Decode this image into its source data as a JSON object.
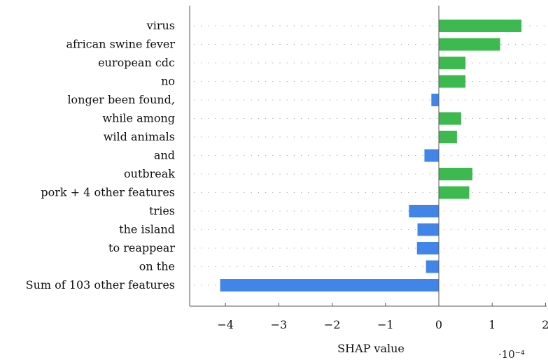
{
  "chart_data": {
    "type": "bar",
    "orientation": "horizontal",
    "categories": [
      "virus",
      "african swine fever",
      "european cdc",
      "no",
      "longer been found,",
      "while among",
      "wild animals",
      "and",
      "outbreak",
      "pork + 4 other features",
      "tries",
      "the island",
      "to reappear",
      "on the",
      "Sum of 103 other features"
    ],
    "values": [
      1.55,
      1.15,
      0.5,
      0.5,
      -0.14,
      0.42,
      0.34,
      -0.27,
      0.63,
      0.57,
      -0.56,
      -0.4,
      -0.41,
      -0.24,
      -4.1
    ],
    "value_scale": "×10^-4",
    "xlabel": "SHAP value",
    "x_multiplier_label": "·10⁻⁴",
    "xlim": [
      -4.7,
      2.0
    ],
    "xticks": [
      -4,
      -3,
      -2,
      -1,
      0,
      1,
      2
    ],
    "xtick_labels": [
      "−4",
      "−3",
      "−2",
      "−1",
      "0",
      "1",
      "2"
    ],
    "grid": "horizontal dotted lines per category",
    "colors": {
      "positive": "#3dba4f",
      "negative": "#4285e8",
      "axis": "#555555",
      "grid": "#aaaaaa"
    }
  }
}
